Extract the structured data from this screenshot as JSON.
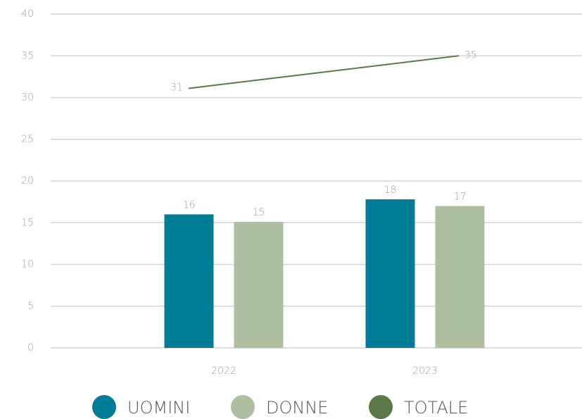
{
  "chart_data": {
    "type": "bar-line",
    "categories": [
      "2022",
      "2023"
    ],
    "series": [
      {
        "name": "UOMINI",
        "type": "bar",
        "color": "#007c96",
        "values": [
          16,
          17.8
        ],
        "value_labels": [
          "16",
          "18"
        ]
      },
      {
        "name": "DONNE",
        "type": "bar",
        "color": "#adbfa0",
        "values": [
          15.1,
          17
        ],
        "value_labels": [
          "15",
          "17"
        ]
      },
      {
        "name": "TOTALE",
        "type": "line",
        "color": "#5a7a45",
        "values": [
          31.1,
          35
        ],
        "value_labels": [
          "31",
          "35"
        ]
      }
    ],
    "ylim": [
      0,
      40
    ],
    "yticks": [
      0,
      5,
      10,
      15,
      20,
      25,
      30,
      35,
      40
    ],
    "grid": true,
    "legend": "bottom"
  }
}
